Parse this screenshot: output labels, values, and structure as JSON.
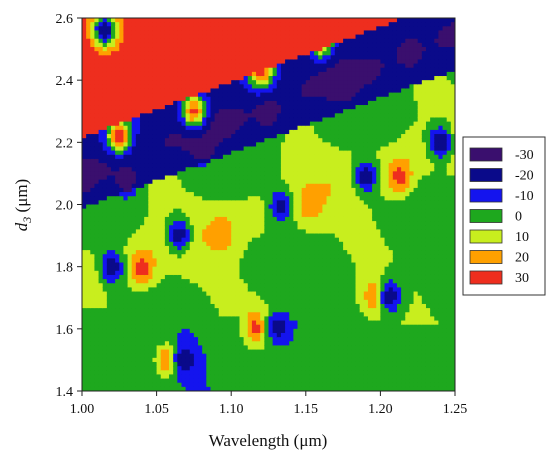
{
  "chart_data": {
    "type": "heatmap",
    "title": "",
    "xlabel": "Wavelength (μm)",
    "ylabel_main": "d",
    "ylabel_sub": "3",
    "ylabel_unit": " (μm)",
    "xlim": [
      1.0,
      1.25
    ],
    "ylim": [
      1.4,
      2.6
    ],
    "x_ticks": [
      "1.00",
      "1.05",
      "1.10",
      "1.15",
      "1.20",
      "1.25"
    ],
    "y_ticks": [
      "1.4",
      "1.6",
      "1.8",
      "2.0",
      "2.2",
      "2.4",
      "2.6"
    ],
    "grid": false,
    "legend_position": "right",
    "legend": [
      {
        "label": "-30",
        "color": "#3a0f6e"
      },
      {
        "label": "-20",
        "color": "#0a0a8a"
      },
      {
        "label": "-10",
        "color": "#1414ee"
      },
      {
        "label": "0",
        "color": "#1ea81e"
      },
      {
        "label": "10",
        "color": "#c8ee1e"
      },
      {
        "label": "20",
        "color": "#ffa000"
      },
      {
        "label": "30",
        "color": "#ee2e1e"
      }
    ],
    "color_levels": [
      -30,
      -20,
      -10,
      0,
      10,
      20,
      30
    ],
    "hotspots": [
      {
        "x": 1.058,
        "y": 1.5,
        "value": 32
      },
      {
        "x": 1.068,
        "y": 1.5,
        "value": -25
      },
      {
        "x": 1.117,
        "y": 1.605,
        "value": 32
      },
      {
        "x": 1.132,
        "y": 1.605,
        "value": -22
      },
      {
        "x": 1.197,
        "y": 1.705,
        "value": 32
      },
      {
        "x": 1.206,
        "y": 1.705,
        "value": -25
      },
      {
        "x": 1.04,
        "y": 1.795,
        "value": 32
      },
      {
        "x": 1.02,
        "y": 1.8,
        "value": -25
      },
      {
        "x": 1.093,
        "y": 1.9,
        "value": 25
      },
      {
        "x": 1.065,
        "y": 1.9,
        "value": -25
      },
      {
        "x": 1.153,
        "y": 2.0,
        "value": 25
      },
      {
        "x": 1.133,
        "y": 1.995,
        "value": -22
      },
      {
        "x": 1.213,
        "y": 2.09,
        "value": 32
      },
      {
        "x": 1.19,
        "y": 2.09,
        "value": -25
      },
      {
        "x": 1.03,
        "y": 2.08,
        "value": -30
      },
      {
        "x": 1.08,
        "y": 2.19,
        "value": -30
      },
      {
        "x": 1.125,
        "y": 2.29,
        "value": -30
      },
      {
        "x": 1.175,
        "y": 2.39,
        "value": -30
      },
      {
        "x": 1.22,
        "y": 2.49,
        "value": -30
      },
      {
        "x": 1.24,
        "y": 2.2,
        "value": -28
      },
      {
        "x": 1.015,
        "y": 2.56,
        "value": -30
      },
      {
        "x": 1.035,
        "y": 2.38,
        "value": 35
      },
      {
        "x": 1.025,
        "y": 2.22,
        "value": 35
      },
      {
        "x": 1.07,
        "y": 2.48,
        "value": 35
      },
      {
        "x": 1.075,
        "y": 2.3,
        "value": 33
      },
      {
        "x": 1.12,
        "y": 2.43,
        "value": 35
      },
      {
        "x": 1.16,
        "y": 2.53,
        "value": 35
      }
    ]
  }
}
